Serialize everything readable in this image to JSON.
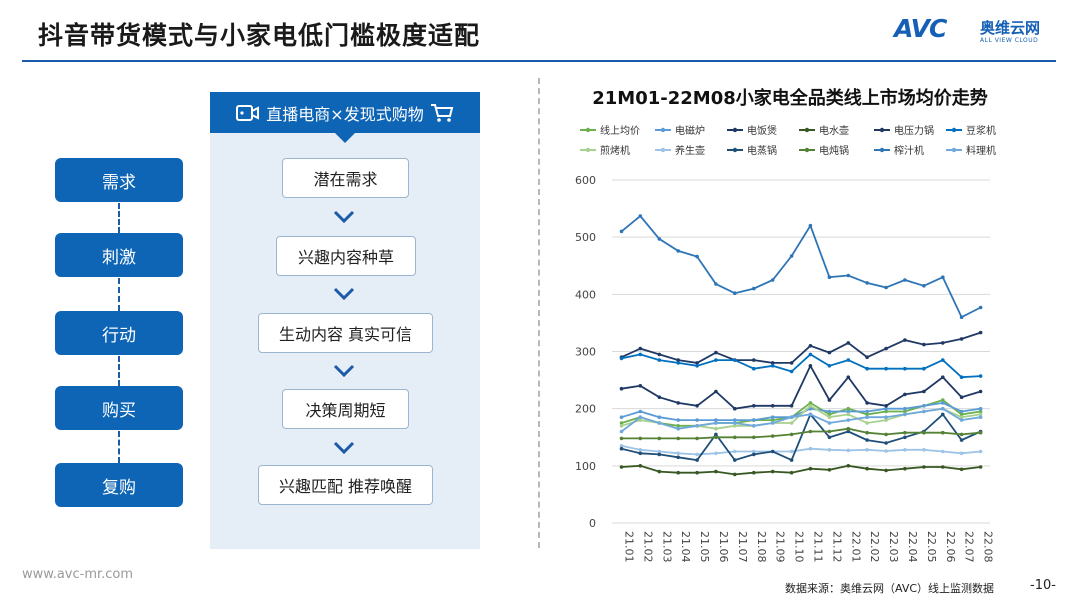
{
  "header": {
    "title": "抖音带货模式与小家电低门槛极度适配",
    "logo_main": "AVC",
    "logo_cn": "奥维云网",
    "logo_en": "ALL VIEW CLOUD",
    "colors": {
      "brand": "#0f65b5",
      "accent": "#1f8fe0"
    }
  },
  "stages": [
    "需求",
    "刺激",
    "行动",
    "购买",
    "复购"
  ],
  "panel": {
    "title": "直播电商×发现式购物",
    "steps": [
      "潜在需求",
      "兴趣内容种草",
      "生动内容  真实可信",
      "决策周期短",
      "兴趣匹配  推荐唤醒"
    ]
  },
  "footer": {
    "website": "www.avc-mr.com",
    "source": "数据来源：奥维云网（AVC）线上监测数据",
    "page": "-10-"
  },
  "chart_data": {
    "type": "line",
    "title": "21M01-22M08小家电全品类线上市场均价走势",
    "ylim": [
      0,
      600
    ],
    "yticks": [
      0,
      100,
      200,
      300,
      400,
      500,
      600
    ],
    "legend_position": "top",
    "categories": [
      "21.01",
      "21.02",
      "21.03",
      "21.04",
      "21.05",
      "21.06",
      "21.07",
      "21.08",
      "21.09",
      "21.10",
      "21.11",
      "21.12",
      "22.01",
      "22.02",
      "22.03",
      "22.04",
      "22.05",
      "22.06",
      "22.07",
      "22.08"
    ],
    "series": [
      {
        "name": "线上均价",
        "color": "#6ab04c",
        "values": [
          175,
          185,
          175,
          170,
          170,
          175,
          175,
          180,
          180,
          185,
          210,
          190,
          200,
          190,
          195,
          195,
          205,
          215,
          190,
          195
        ]
      },
      {
        "name": "电磁炉",
        "color": "#5b9bd5",
        "values": [
          185,
          195,
          185,
          180,
          180,
          180,
          180,
          180,
          185,
          185,
          200,
          195,
          195,
          195,
          200,
          200,
          205,
          210,
          195,
          200
        ]
      },
      {
        "name": "电饭煲",
        "color": "#1f3864",
        "values": [
          235,
          240,
          220,
          210,
          205,
          230,
          200,
          205,
          205,
          205,
          275,
          215,
          255,
          210,
          205,
          225,
          230,
          255,
          220,
          230
        ]
      },
      {
        "name": "电水壶",
        "color": "#385723",
        "values": [
          98,
          100,
          90,
          88,
          88,
          90,
          85,
          88,
          90,
          88,
          95,
          93,
          100,
          95,
          92,
          95,
          98,
          98,
          94,
          98
        ]
      },
      {
        "name": "电压力锅",
        "color": "#203864",
        "values": [
          290,
          305,
          295,
          285,
          280,
          298,
          285,
          285,
          280,
          280,
          310,
          298,
          315,
          290,
          305,
          320,
          312,
          315,
          322,
          333
        ]
      },
      {
        "name": "豆浆机",
        "color": "#0070c0",
        "values": [
          288,
          295,
          285,
          280,
          275,
          285,
          285,
          270,
          275,
          265,
          295,
          275,
          285,
          270,
          270,
          270,
          270,
          285,
          255,
          257
        ]
      },
      {
        "name": "煎烤机",
        "color": "#a9d18e",
        "values": [
          170,
          180,
          175,
          165,
          170,
          165,
          170,
          170,
          175,
          175,
          205,
          185,
          190,
          175,
          180,
          190,
          195,
          200,
          185,
          190
        ]
      },
      {
        "name": "养生壶",
        "color": "#9dc3e6",
        "values": [
          135,
          128,
          125,
          122,
          120,
          122,
          125,
          125,
          125,
          125,
          130,
          128,
          127,
          128,
          126,
          128,
          128,
          125,
          122,
          125
        ]
      },
      {
        "name": "电蒸锅",
        "color": "#1f4e79",
        "values": [
          130,
          122,
          120,
          115,
          110,
          155,
          110,
          120,
          125,
          110,
          190,
          150,
          160,
          145,
          140,
          150,
          160,
          190,
          145,
          160
        ]
      },
      {
        "name": "电炖锅",
        "color": "#548235",
        "values": [
          148,
          148,
          148,
          148,
          148,
          150,
          150,
          150,
          152,
          155,
          160,
          160,
          165,
          158,
          155,
          158,
          158,
          158,
          155,
          158
        ]
      },
      {
        "name": "榨汁机",
        "color": "#2e75b6",
        "values": [
          510,
          537,
          497,
          476,
          466,
          418,
          402,
          410,
          425,
          467,
          520,
          430,
          433,
          420,
          412,
          425,
          415,
          430,
          360,
          377
        ]
      },
      {
        "name": "料理机",
        "color": "#6fa8dc",
        "values": [
          160,
          185,
          175,
          165,
          170,
          175,
          175,
          170,
          175,
          185,
          190,
          175,
          180,
          185,
          185,
          190,
          195,
          200,
          180,
          185
        ]
      }
    ]
  }
}
